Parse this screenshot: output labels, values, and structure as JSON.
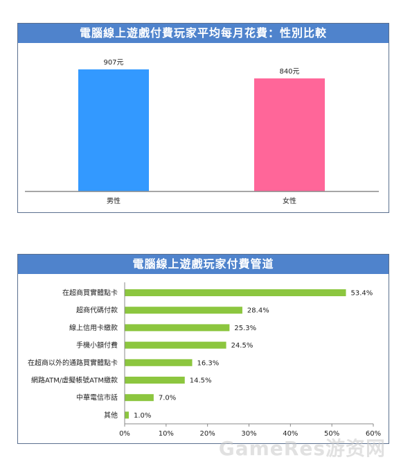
{
  "chart_data": [
    {
      "type": "bar",
      "title": "電腦線上遊戲付費玩家平均每月花費：性別比較",
      "categories": [
        "男性",
        "女性"
      ],
      "values": [
        907,
        840
      ],
      "value_labels": [
        "907元",
        "840元"
      ],
      "colors": [
        "#3399ff",
        "#ff6699"
      ],
      "ylim": [
        0,
        1000
      ],
      "grid": false,
      "legend": "none"
    },
    {
      "type": "bar",
      "orientation": "horizontal",
      "title": "電腦線上遊戲玩家付費管道",
      "categories": [
        "在超商買實體點卡",
        "超商代碼付款",
        "線上信用卡繳款",
        "手機小額付費",
        "在超商以外的通路買實體點卡",
        "網路ATM/虛擬帳號ATM繳款",
        "中華電信市話",
        "其他"
      ],
      "values": [
        53.4,
        28.4,
        25.3,
        24.5,
        16.3,
        14.5,
        7.0,
        1.0
      ],
      "value_labels": [
        "53.4%",
        "28.4%",
        "25.3%",
        "24.5%",
        "16.3%",
        "14.5%",
        "7.0%",
        "1.0%"
      ],
      "x_ticks": [
        "0%",
        "10%",
        "20%",
        "30%",
        "40%",
        "50%",
        "60%"
      ],
      "xlim": [
        0,
        60
      ],
      "color": "#8cc63f",
      "grid": false,
      "legend": "none"
    }
  ],
  "watermark": "GameRes游资网"
}
